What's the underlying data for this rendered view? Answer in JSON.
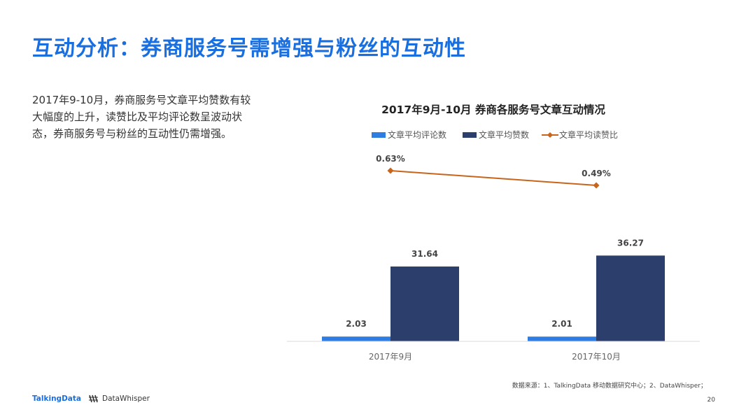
{
  "page": {
    "title": "互动分析：券商服务号需增强与粉丝的互动性",
    "description": "2017年9-10月，券商服务号文章平均赞数有较大幅度的上升，读赞比及平均评论数呈波动状态，券商服务号与粉丝的互动性仍需增强。",
    "source": "数据来源：1、TalkingData 移动数据研究中心；2、DataWhisper；",
    "page_number": "20",
    "logo_talkingdata": "TalkingData",
    "logo_datawhisper": "DataWhisper"
  },
  "chart_data": {
    "type": "bar",
    "title": "2017年9月-10月 券商各服务号文章互动情况",
    "categories": [
      "2017年9月",
      "2017年10月"
    ],
    "series": [
      {
        "name": "文章平均评论数",
        "type": "bar",
        "color": "#2f7de1",
        "values": [
          2.03,
          2.01
        ],
        "labels": [
          "2.03",
          "2.01"
        ]
      },
      {
        "name": "文章平均赞数",
        "type": "bar",
        "color": "#2c3e6b",
        "values": [
          31.64,
          36.27
        ],
        "labels": [
          "31.64",
          "36.27"
        ]
      },
      {
        "name": "文章平均读赞比",
        "type": "line",
        "color": "#c8651c",
        "values": [
          0.63,
          0.49
        ],
        "labels": [
          "0.63%",
          "0.49%"
        ],
        "unit": "%"
      }
    ],
    "legend_position": "top",
    "grid": false
  }
}
